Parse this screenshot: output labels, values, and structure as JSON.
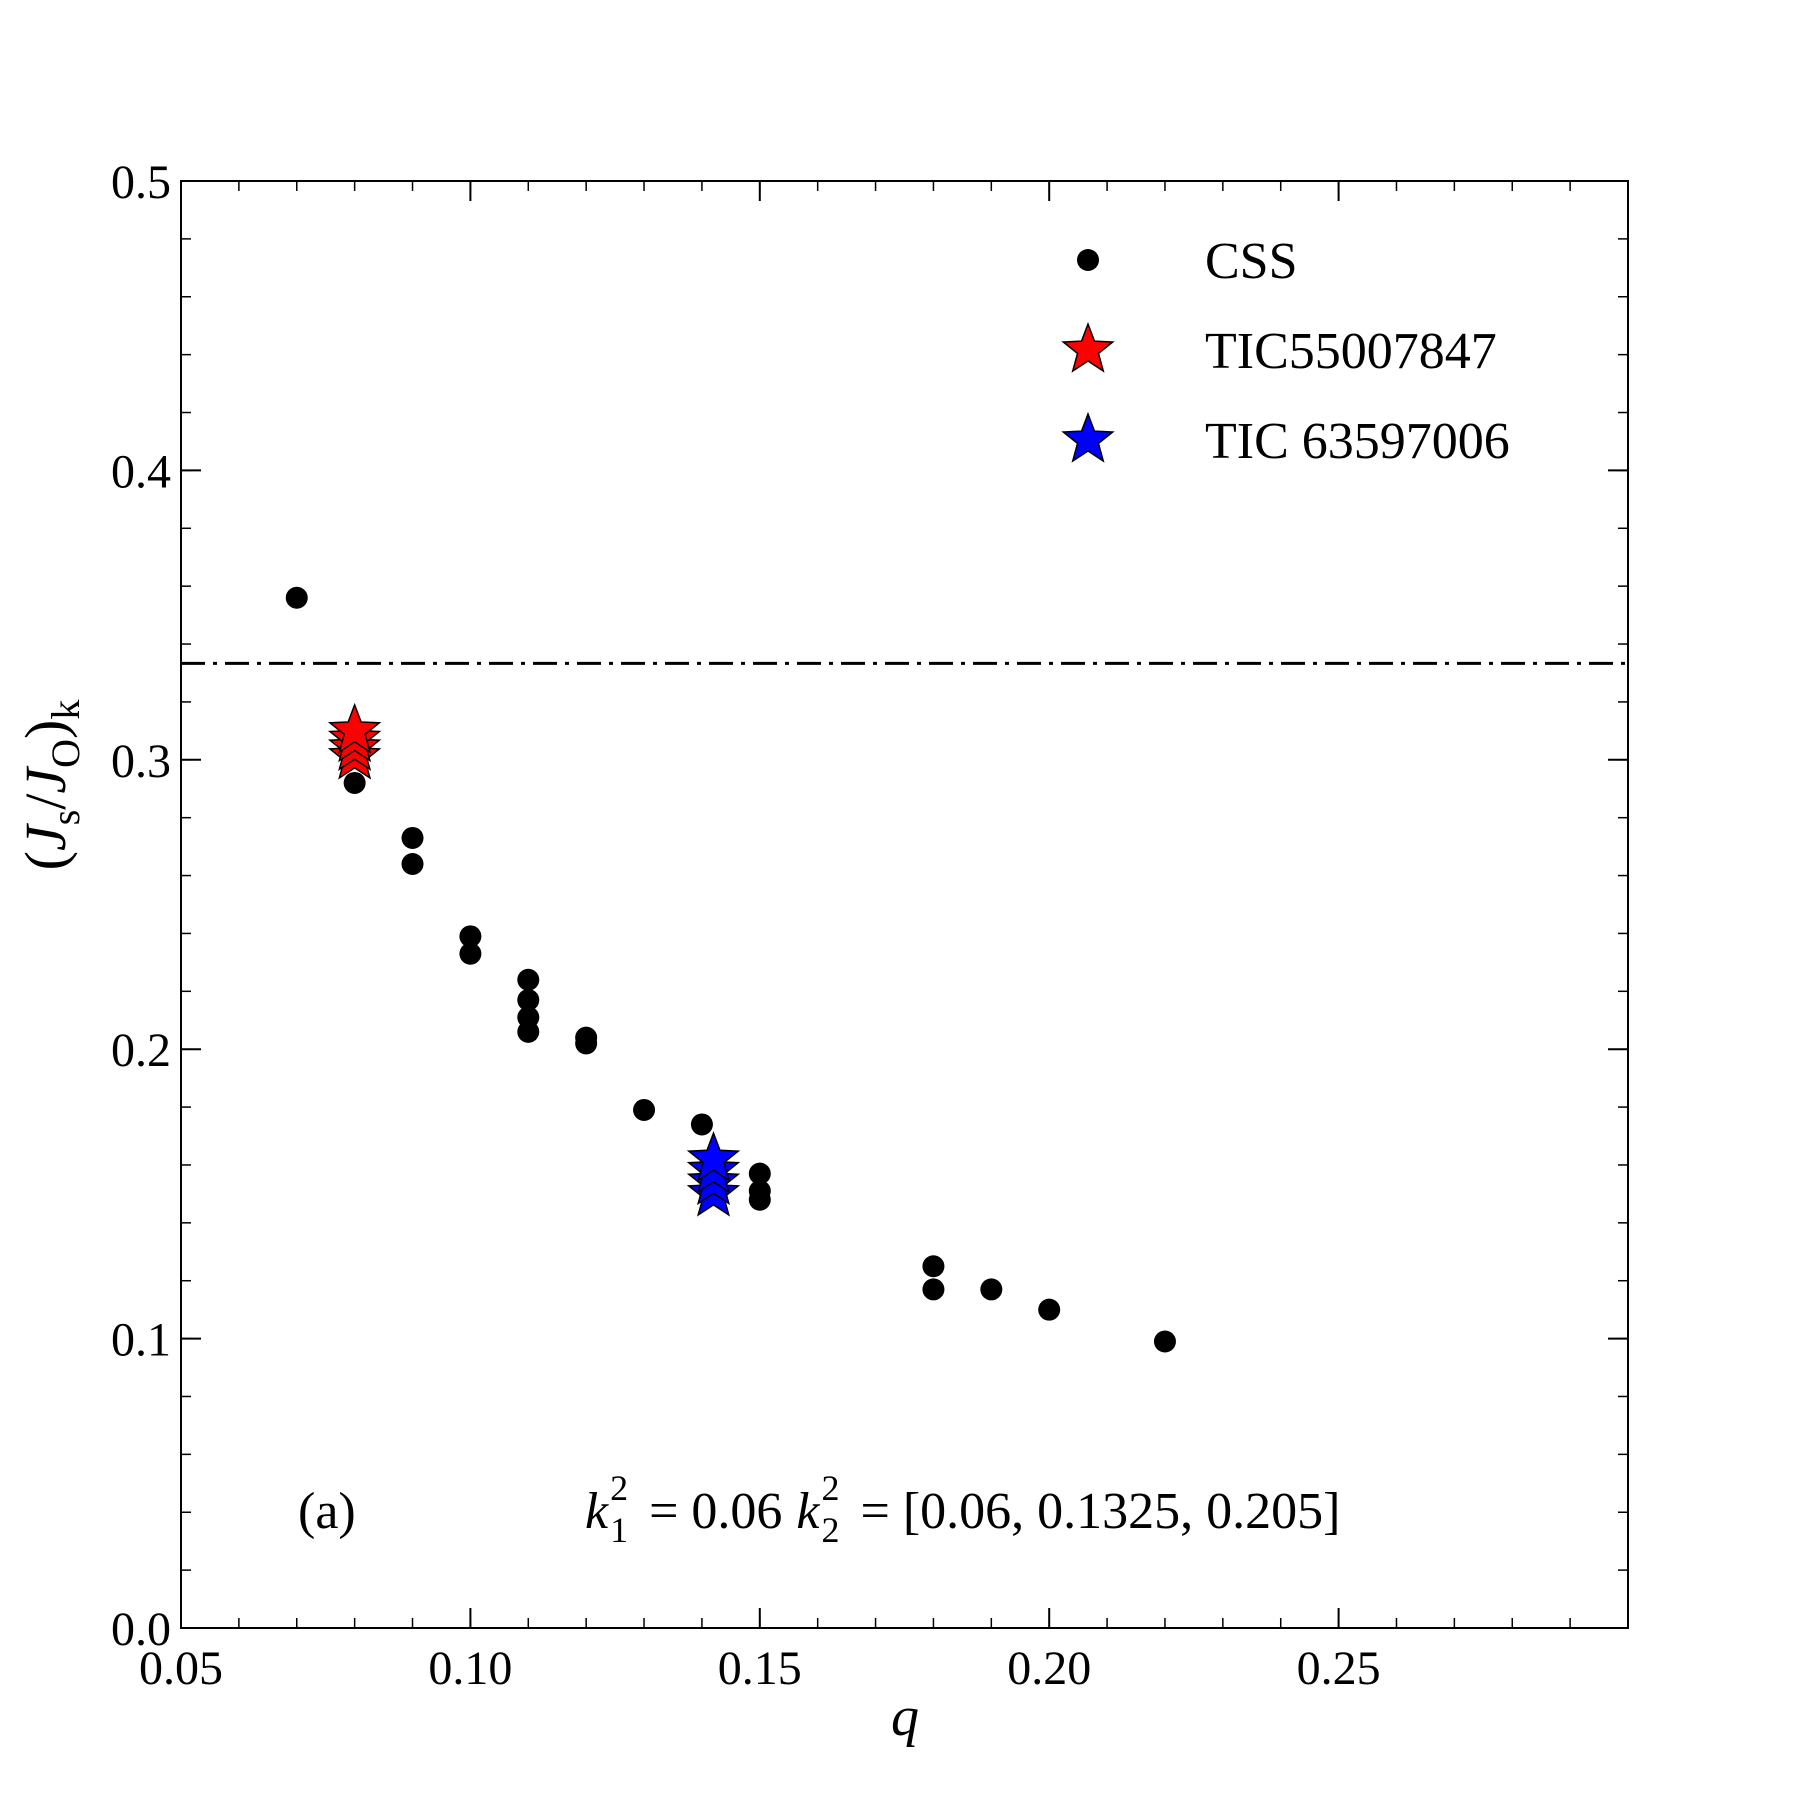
{
  "chart_data": {
    "type": "scatter",
    "title": "",
    "xlabel": "q",
    "ylabel": "(J_s/J_O)_k",
    "xlim": [
      0.05,
      0.3
    ],
    "ylim": [
      0.0,
      0.5
    ],
    "xticks": [
      "0.05",
      "0.10",
      "0.15",
      "0.20",
      "0.25"
    ],
    "yticks": [
      "0.0",
      "0.1",
      "0.2",
      "0.3",
      "0.4",
      "0.5"
    ],
    "grid": false,
    "legend_position": "top-right",
    "reference_line": {
      "y": 0.3333,
      "style": "dash-dot"
    },
    "series": [
      {
        "name": "CSS",
        "marker": "circle",
        "color": "#000000",
        "points": [
          [
            0.07,
            0.356
          ],
          [
            0.08,
            0.292
          ],
          [
            0.09,
            0.273
          ],
          [
            0.09,
            0.264
          ],
          [
            0.1,
            0.239
          ],
          [
            0.1,
            0.233
          ],
          [
            0.11,
            0.224
          ],
          [
            0.11,
            0.217
          ],
          [
            0.11,
            0.211
          ],
          [
            0.11,
            0.206
          ],
          [
            0.12,
            0.204
          ],
          [
            0.12,
            0.202
          ],
          [
            0.13,
            0.179
          ],
          [
            0.14,
            0.174
          ],
          [
            0.15,
            0.157
          ],
          [
            0.15,
            0.151
          ],
          [
            0.15,
            0.148
          ],
          [
            0.18,
            0.125
          ],
          [
            0.18,
            0.117
          ],
          [
            0.19,
            0.117
          ],
          [
            0.2,
            0.11
          ],
          [
            0.22,
            0.099
          ]
        ]
      },
      {
        "name": "TIC55007847",
        "marker": "star",
        "color": "#ff0000",
        "points": [
          [
            0.08,
            0.301
          ],
          [
            0.08,
            0.304
          ],
          [
            0.08,
            0.307
          ],
          [
            0.08,
            0.31
          ]
        ]
      },
      {
        "name": "TIC 63597006",
        "marker": "star",
        "color": "#0000ff",
        "points": [
          [
            0.142,
            0.15
          ],
          [
            0.142,
            0.154
          ],
          [
            0.142,
            0.158
          ],
          [
            0.142,
            0.162
          ]
        ]
      }
    ],
    "annotations": {
      "panel": "(a)",
      "k1": "0.06",
      "k2": "[0.06, 0.1325, 0.205]"
    }
  }
}
